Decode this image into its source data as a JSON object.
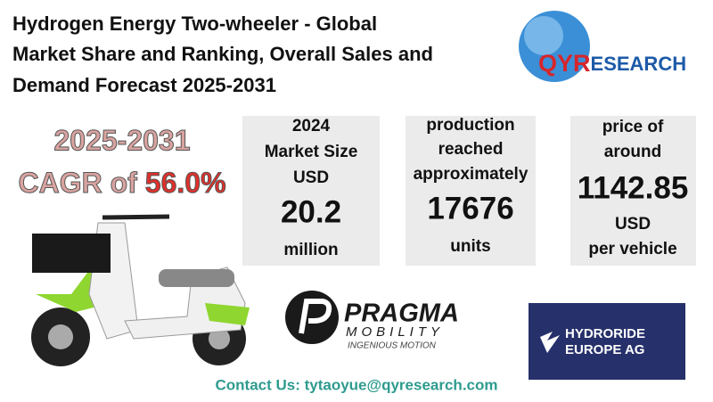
{
  "header": {
    "title_lines": [
      "Hydrogen Energy Two-wheeler - Global",
      "Market Share and Ranking, Overall Sales and",
      "Demand Forecast 2025-2031"
    ]
  },
  "logo": {
    "initials": "QYR",
    "rest": "ESEARCH"
  },
  "cagr": {
    "period": "2025-2031",
    "label": "CAGR of",
    "value": "56.0%"
  },
  "stats": [
    {
      "lines": [
        "2024",
        "Market Size",
        "USD"
      ],
      "value": "20.2",
      "unit_lines": [
        "million"
      ]
    },
    {
      "lines": [
        "production",
        "reached",
        "approximately"
      ],
      "value": "17676",
      "unit_lines": [
        "units"
      ]
    },
    {
      "lines": [
        "price of",
        "around"
      ],
      "value": "1142.85",
      "unit_lines": [
        "USD",
        "per vehicle"
      ]
    }
  ],
  "partners": {
    "pragma": {
      "name": "PRAGMA",
      "sub": "MOBILITY",
      "tagline": "INGENIOUS MOTION"
    },
    "hydroride": {
      "line1": "HYDRORIDE",
      "line2": "EUROPE AG"
    }
  },
  "contact": "Contact Us: tytaoyue@qyresearch.com"
}
